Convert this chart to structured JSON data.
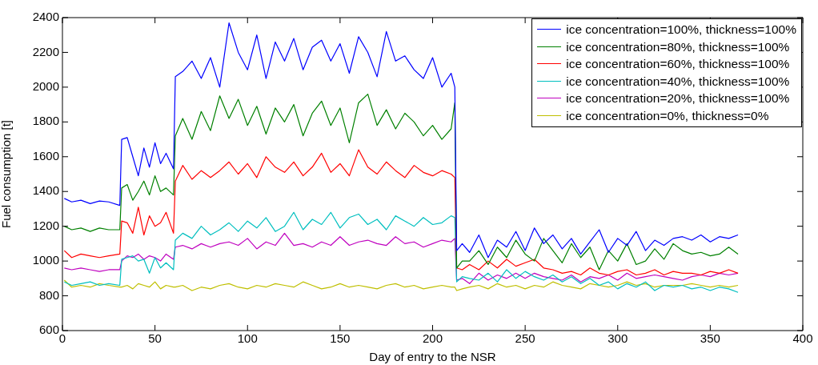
{
  "chart_data": {
    "type": "line",
    "xlabel": "Day of entry to the NSR",
    "ylabel": "Fuel consumption [t]",
    "x": [
      1,
      5,
      10,
      15,
      20,
      25,
      31,
      32,
      35,
      38,
      41,
      44,
      47,
      50,
      53,
      56,
      60,
      61,
      65,
      70,
      75,
      80,
      85,
      90,
      95,
      100,
      105,
      110,
      115,
      120,
      125,
      130,
      135,
      140,
      145,
      150,
      155,
      160,
      165,
      170,
      175,
      180,
      185,
      190,
      195,
      200,
      205,
      210,
      212,
      213,
      216,
      220,
      225,
      230,
      235,
      240,
      245,
      250,
      255,
      260,
      265,
      270,
      275,
      280,
      285,
      290,
      295,
      300,
      305,
      310,
      315,
      320,
      325,
      330,
      335,
      340,
      345,
      350,
      355,
      360,
      365
    ],
    "xlim": [
      0,
      400
    ],
    "xticks": [
      0,
      50,
      100,
      150,
      200,
      250,
      300,
      350,
      400
    ],
    "ylim": [
      600,
      2400
    ],
    "yticks": [
      600,
      800,
      1000,
      1200,
      1400,
      1600,
      1800,
      2000,
      2200,
      2400
    ],
    "legend": "top right",
    "marker": "none",
    "line_style": "solid",
    "series": [
      {
        "name": "ice concentration=100%, thickness=100%",
        "color": "#0000ff",
        "values": [
          1360,
          1340,
          1350,
          1330,
          1345,
          1340,
          1320,
          1700,
          1710,
          1600,
          1490,
          1650,
          1540,
          1680,
          1560,
          1620,
          1530,
          2060,
          2090,
          2150,
          2050,
          2170,
          2000,
          2370,
          2200,
          2100,
          2300,
          2050,
          2260,
          2150,
          2280,
          2100,
          2230,
          2270,
          2150,
          2250,
          2080,
          2290,
          2200,
          2060,
          2320,
          2150,
          2180,
          2100,
          2050,
          2170,
          2000,
          2080,
          2000,
          1060,
          1100,
          1050,
          1150,
          1020,
          1120,
          1080,
          1170,
          1060,
          1190,
          1100,
          1150,
          1070,
          1130,
          1040,
          1110,
          1180,
          1050,
          1130,
          1090,
          1170,
          1060,
          1120,
          1090,
          1130,
          1140,
          1120,
          1150,
          1110,
          1140,
          1130,
          1150
        ]
      },
      {
        "name": "ice concentration=80%, thickness=100%",
        "color": "#008000",
        "values": [
          1200,
          1180,
          1190,
          1170,
          1190,
          1180,
          1180,
          1420,
          1440,
          1350,
          1400,
          1460,
          1380,
          1490,
          1400,
          1420,
          1380,
          1720,
          1820,
          1700,
          1860,
          1750,
          1950,
          1820,
          1930,
          1780,
          1890,
          1730,
          1880,
          1800,
          1900,
          1720,
          1850,
          1920,
          1780,
          1880,
          1680,
          1910,
          1960,
          1780,
          1870,
          1760,
          1850,
          1800,
          1720,
          1780,
          1700,
          1760,
          1910,
          960,
          1000,
          1000,
          1060,
          980,
          1080,
          1020,
          1120,
          1040,
          1000,
          1130,
          1060,
          990,
          1100,
          1020,
          1080,
          950,
          1060,
          1000,
          1100,
          980,
          1000,
          1070,
          1010,
          1100,
          1060,
          1040,
          1050,
          1030,
          1040,
          1080,
          1040
        ]
      },
      {
        "name": "ice concentration=60%, thickness=100%",
        "color": "#ff0000",
        "values": [
          1060,
          1020,
          1040,
          1030,
          1020,
          1030,
          1040,
          1230,
          1220,
          1160,
          1310,
          1150,
          1260,
          1200,
          1220,
          1280,
          1160,
          1460,
          1550,
          1470,
          1520,
          1480,
          1520,
          1570,
          1500,
          1560,
          1480,
          1600,
          1540,
          1510,
          1570,
          1490,
          1540,
          1620,
          1510,
          1560,
          1490,
          1640,
          1540,
          1500,
          1570,
          1520,
          1480,
          1550,
          1510,
          1490,
          1520,
          1500,
          1480,
          960,
          950,
          980,
          950,
          1000,
          960,
          1010,
          970,
          990,
          1010,
          960,
          950,
          930,
          940,
          920,
          960,
          930,
          920,
          940,
          950,
          920,
          930,
          950,
          920,
          940,
          930,
          930,
          920,
          940,
          930,
          950,
          930
        ]
      },
      {
        "name": "ice concentration=40%, thickness=100%",
        "color": "#00bfbf",
        "values": [
          880,
          860,
          870,
          880,
          860,
          870,
          860,
          1010,
          1020,
          1030,
          1000,
          1010,
          930,
          1020,
          960,
          990,
          950,
          1120,
          1160,
          1130,
          1200,
          1150,
          1180,
          1220,
          1170,
          1230,
          1190,
          1250,
          1170,
          1200,
          1280,
          1180,
          1240,
          1210,
          1280,
          1190,
          1250,
          1270,
          1210,
          1240,
          1180,
          1260,
          1230,
          1200,
          1250,
          1210,
          1220,
          1260,
          1250,
          880,
          910,
          900,
          890,
          930,
          880,
          950,
          900,
          940,
          910,
          890,
          920,
          880,
          910,
          870,
          900,
          860,
          880,
          840,
          870,
          850,
          880,
          830,
          860,
          850,
          860,
          840,
          850,
          830,
          850,
          840,
          820
        ]
      },
      {
        "name": "ice concentration=20%, thickness=100%",
        "color": "#bf00bf",
        "values": [
          960,
          950,
          960,
          950,
          940,
          950,
          950,
          1000,
          1030,
          1020,
          1040,
          1010,
          1030,
          1020,
          1000,
          1040,
          1010,
          1080,
          1090,
          1070,
          1100,
          1080,
          1100,
          1110,
          1090,
          1130,
          1070,
          1110,
          1090,
          1160,
          1090,
          1100,
          1080,
          1110,
          1090,
          1140,
          1090,
          1110,
          1120,
          1100,
          1090,
          1140,
          1100,
          1110,
          1080,
          1100,
          1120,
          1110,
          1130,
          890,
          900,
          870,
          930,
          890,
          920,
          900,
          930,
          900,
          930,
          910,
          900,
          890,
          920,
          880,
          910,
          900,
          920,
          890,
          930,
          900,
          910,
          920,
          910,
          900,
          890,
          910,
          920,
          910,
          930,
          920,
          930
        ]
      },
      {
        "name": "ice concentration=0%, thickness=0%",
        "color": "#bfbf00",
        "values": [
          890,
          850,
          860,
          850,
          870,
          860,
          850,
          850,
          860,
          840,
          870,
          860,
          850,
          880,
          840,
          860,
          850,
          850,
          860,
          830,
          850,
          840,
          860,
          870,
          850,
          840,
          860,
          850,
          870,
          860,
          850,
          880,
          860,
          840,
          850,
          870,
          850,
          860,
          850,
          840,
          860,
          870,
          850,
          860,
          840,
          850,
          860,
          850,
          850,
          830,
          840,
          850,
          860,
          840,
          870,
          850,
          860,
          840,
          860,
          850,
          880,
          860,
          850,
          840,
          870,
          860,
          850,
          860,
          880,
          860,
          870,
          850,
          860,
          860,
          860,
          870,
          860,
          850,
          860,
          850,
          860
        ]
      }
    ]
  }
}
